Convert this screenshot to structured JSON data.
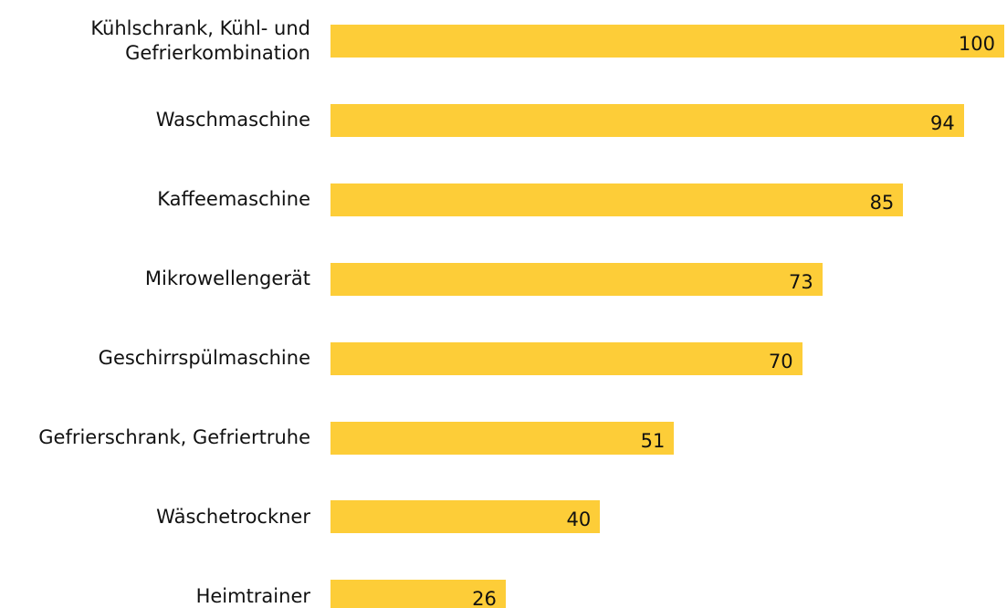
{
  "chart_data": {
    "type": "bar",
    "orientation": "horizontal",
    "categories": [
      "Kühlschrank, Kühl- und Gefrierkombination",
      "Waschmaschine",
      "Kaffeemaschine",
      "Mikrowellengerät",
      "Geschirrspülmaschine",
      "Gefrierschrank, Gefriertruhe",
      "Wäschetrockner",
      "Heimtrainer"
    ],
    "values": [
      100,
      94,
      85,
      73,
      70,
      51,
      40,
      26
    ],
    "color": "#fdcd38",
    "xlim": [
      0,
      100
    ]
  }
}
